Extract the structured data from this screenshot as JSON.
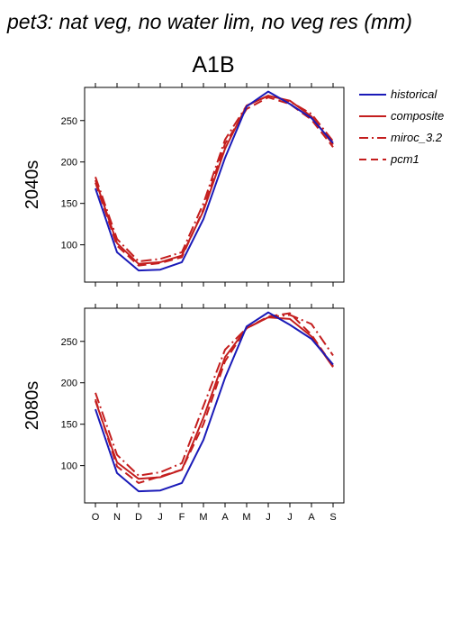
{
  "figure": {
    "title": "pet3: nat veg, no water lim, no veg res (mm)",
    "scenario": "A1B"
  },
  "legend": [
    {
      "label": "historical",
      "color": "#1a1ab8",
      "dash": "solid"
    },
    {
      "label": "composite",
      "color": "#c41e1e",
      "dash": "solid"
    },
    {
      "label": "miroc_3.2",
      "color": "#c41e1e",
      "dash": "dashdot"
    },
    {
      "label": "pcm1",
      "color": "#c41e1e",
      "dash": "dash"
    }
  ],
  "chart_data": [
    {
      "type": "line",
      "panel_label": "2040s",
      "categories": [
        "O",
        "N",
        "D",
        "J",
        "F",
        "M",
        "A",
        "M",
        "J",
        "J",
        "A",
        "S"
      ],
      "ylim": [
        55,
        290
      ],
      "yticks": [
        100,
        150,
        200,
        250
      ],
      "series": [
        {
          "name": "historical",
          "values": [
            168,
            91,
            69,
            70,
            79,
            131,
            205,
            267,
            285,
            270,
            253,
            223
          ]
        },
        {
          "name": "composite",
          "values": [
            178,
            102,
            77,
            79,
            87,
            141,
            216,
            268,
            280,
            274,
            255,
            221
          ]
        },
        {
          "name": "miroc_3.2",
          "values": [
            182,
            107,
            80,
            83,
            91,
            150,
            227,
            268,
            280,
            273,
            258,
            225
          ]
        },
        {
          "name": "pcm1",
          "values": [
            175,
            99,
            75,
            78,
            85,
            143,
            222,
            264,
            278,
            270,
            251,
            218
          ]
        }
      ]
    },
    {
      "type": "line",
      "panel_label": "2080s",
      "categories": [
        "O",
        "N",
        "D",
        "J",
        "F",
        "M",
        "A",
        "M",
        "J",
        "J",
        "A",
        "S"
      ],
      "ylim": [
        55,
        290
      ],
      "yticks": [
        100,
        150,
        200,
        250
      ],
      "series": [
        {
          "name": "historical",
          "values": [
            168,
            91,
            69,
            70,
            79,
            131,
            206,
            268,
            285,
            270,
            253,
            222
          ]
        },
        {
          "name": "composite",
          "values": [
            178,
            104,
            84,
            86,
            95,
            158,
            231,
            266,
            279,
            277,
            256,
            219
          ]
        },
        {
          "name": "miroc_3.2",
          "values": [
            188,
            113,
            88,
            92,
            103,
            172,
            240,
            266,
            279,
            282,
            271,
            233
          ]
        },
        {
          "name": "pcm1",
          "values": [
            180,
            99,
            79,
            87,
            95,
            150,
            226,
            266,
            280,
            284,
            258,
            220
          ]
        }
      ]
    }
  ]
}
